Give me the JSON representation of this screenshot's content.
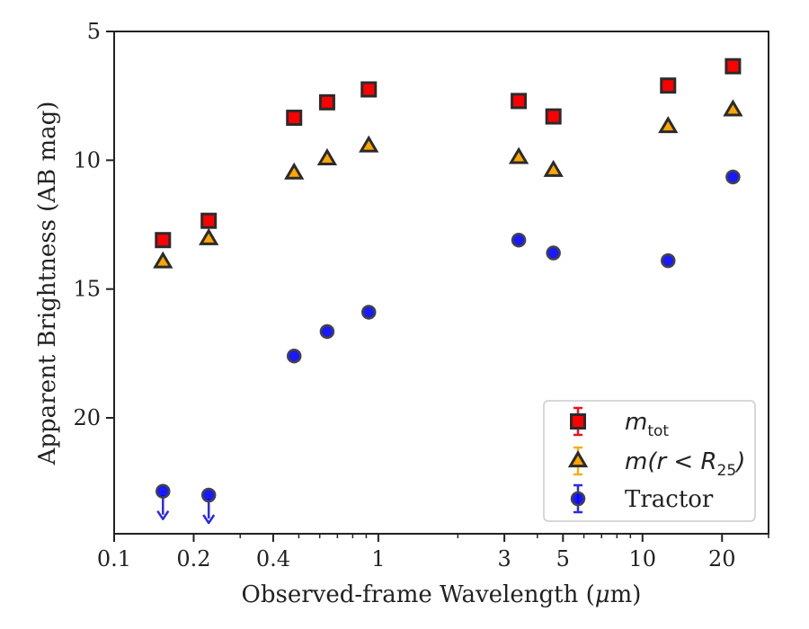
{
  "chart_data": {
    "type": "scatter",
    "xlabel": "Observed-frame Wavelength (μm)",
    "xlabel_parts": [
      "Observed-frame Wavelength (",
      "μ",
      "m)"
    ],
    "ylabel": "Apparent Brightness (AB mag)",
    "x_scale": "log",
    "xlim": [
      0.1,
      30
    ],
    "ylim": [
      24.5,
      5
    ],
    "y_inverted": true,
    "grid": false,
    "legend_position": "lower right",
    "x_ticks": [
      {
        "value": 0.1,
        "label": "0.1"
      },
      {
        "value": 0.2,
        "label": "0.2"
      },
      {
        "value": 0.4,
        "label": "0.4"
      },
      {
        "value": 1,
        "label": "1"
      },
      {
        "value": 3,
        "label": "3"
      },
      {
        "value": 5,
        "label": "5"
      },
      {
        "value": 10,
        "label": "10"
      },
      {
        "value": 20,
        "label": "20"
      }
    ],
    "y_ticks": [
      {
        "value": 5,
        "label": "5"
      },
      {
        "value": 10,
        "label": "10"
      },
      {
        "value": 15,
        "label": "15"
      },
      {
        "value": 20,
        "label": "20"
      }
    ],
    "series": [
      {
        "key": "mtot",
        "name": "m",
        "name_sub": "tot",
        "marker": "square",
        "color": "#ff0000",
        "edge_color": "#2b2b2b",
        "errorbar_color": "#e8141c",
        "x": [
          0.153,
          0.228,
          0.48,
          0.64,
          0.92,
          3.4,
          4.6,
          12.5,
          22.0
        ],
        "y": [
          13.1,
          12.35,
          8.35,
          7.75,
          7.25,
          7.7,
          8.3,
          7.1,
          6.35
        ]
      },
      {
        "key": "mr25",
        "name": "m(r < R",
        "name_sub": "25",
        "name_tail": ")",
        "marker": "triangle",
        "color": "#ffa500",
        "edge_color": "#2b2b2b",
        "errorbar_color": "#f2b01e",
        "x": [
          0.153,
          0.228,
          0.48,
          0.64,
          0.92,
          3.4,
          4.6,
          12.5,
          22.0
        ],
        "y": [
          13.95,
          13.05,
          10.5,
          9.95,
          9.45,
          9.9,
          10.4,
          8.7,
          8.05
        ]
      },
      {
        "key": "tractor",
        "name": "Tractor",
        "marker": "circle",
        "color": "#0000ff",
        "edge_color": "#444444",
        "errorbar_color": "#2a2ae8",
        "x": [
          0.153,
          0.228,
          0.48,
          0.64,
          0.92,
          3.4,
          4.6,
          12.5,
          22.0
        ],
        "y": [
          22.85,
          23.0,
          17.6,
          16.65,
          15.9,
          13.1,
          13.6,
          13.9,
          10.65
        ],
        "upper_limits": [
          true,
          true,
          false,
          false,
          false,
          false,
          false,
          false,
          false
        ]
      }
    ]
  }
}
